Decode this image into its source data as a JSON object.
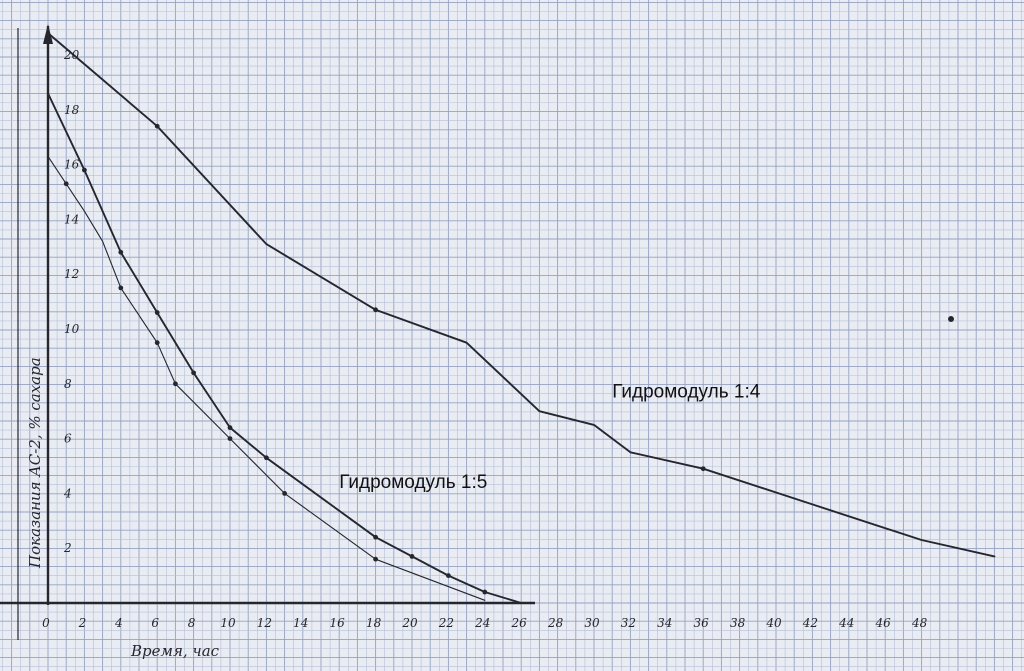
{
  "chart_data": {
    "type": "line",
    "xlabel": "Время, час",
    "ylabel": "Показания АС-2, % сахара",
    "xlim": [
      0,
      52
    ],
    "ylim": [
      0,
      21
    ],
    "grid": true,
    "x_ticks": [
      {
        "value": 0,
        "label": "0"
      },
      {
        "value": 2,
        "label": "2"
      },
      {
        "value": 4,
        "label": "4"
      },
      {
        "value": 6,
        "label": "6"
      },
      {
        "value": 8,
        "label": "8"
      },
      {
        "value": 10,
        "label": "10"
      },
      {
        "value": 12,
        "label": "12"
      },
      {
        "value": 14,
        "label": "14"
      },
      {
        "value": 16,
        "label": "16"
      },
      {
        "value": 18,
        "label": "18"
      },
      {
        "value": 20,
        "label": "20"
      },
      {
        "value": 22,
        "label": "22"
      },
      {
        "value": 24,
        "label": "24"
      },
      {
        "value": 26,
        "label": "26"
      },
      {
        "value": 28,
        "label": "28"
      },
      {
        "value": 30,
        "label": "30"
      },
      {
        "value": 32,
        "label": "32"
      },
      {
        "value": 34,
        "label": "34"
      },
      {
        "value": 36,
        "label": "36"
      },
      {
        "value": 38,
        "label": "38"
      },
      {
        "value": 40,
        "label": "40"
      },
      {
        "value": 42,
        "label": "42"
      },
      {
        "value": 44,
        "label": "44"
      },
      {
        "value": 46,
        "label": "46"
      },
      {
        "value": 48,
        "label": "48"
      }
    ],
    "y_ticks": [
      {
        "value": 2,
        "label": "2"
      },
      {
        "value": 4,
        "label": "4"
      },
      {
        "value": 6,
        "label": "6"
      },
      {
        "value": 8,
        "label": "8"
      },
      {
        "value": 10,
        "label": "10"
      },
      {
        "value": 12,
        "label": "12"
      },
      {
        "value": 14,
        "label": "14"
      },
      {
        "value": 16,
        "label": "16"
      },
      {
        "value": 18,
        "label": "18"
      },
      {
        "value": 20,
        "label": "20"
      }
    ],
    "series": [
      {
        "label_id": "gm14",
        "points": [
          [
            0,
            20.8
          ],
          [
            6,
            17.4
          ],
          [
            12,
            13.1
          ],
          [
            18,
            10.7
          ],
          [
            23,
            9.5
          ],
          [
            27,
            7.0
          ],
          [
            30,
            6.5
          ],
          [
            32,
            5.5
          ],
          [
            36,
            4.9
          ],
          [
            42,
            3.6
          ],
          [
            48,
            2.3
          ],
          [
            52,
            1.7
          ]
        ],
        "markers": [
          [
            6,
            17.4
          ],
          [
            18,
            10.7
          ],
          [
            36,
            4.9
          ]
        ],
        "stroke_width": 1.9
      },
      {
        "label_id": "gm15",
        "points": [
          [
            0,
            18.6
          ],
          [
            2,
            15.8
          ],
          [
            4,
            12.8
          ],
          [
            6,
            10.6
          ],
          [
            8,
            8.4
          ],
          [
            10,
            6.4
          ],
          [
            12,
            5.3
          ],
          [
            18,
            2.4
          ],
          [
            20,
            1.7
          ],
          [
            22,
            1.0
          ],
          [
            24,
            0.4
          ],
          [
            26,
            0
          ]
        ],
        "markers": [
          [
            2,
            15.8
          ],
          [
            4,
            12.8
          ],
          [
            6,
            10.6
          ],
          [
            8,
            8.4
          ],
          [
            10,
            6.4
          ],
          [
            12,
            5.3
          ],
          [
            18,
            2.4
          ],
          [
            20,
            1.7
          ],
          [
            22,
            1.0
          ],
          [
            24,
            0.4
          ]
        ],
        "stroke_width": 1.9
      },
      {
        "points": [
          [
            0,
            16.3
          ],
          [
            2,
            14.3
          ],
          [
            3,
            13.2
          ],
          [
            4,
            11.5
          ],
          [
            6,
            9.5
          ],
          [
            7,
            8.0
          ],
          [
            10,
            6.0
          ],
          [
            13,
            4.0
          ],
          [
            18,
            1.6
          ],
          [
            24,
            0.1
          ]
        ],
        "markers": [
          [
            1,
            15.3
          ],
          [
            4,
            11.5
          ],
          [
            6,
            9.5
          ],
          [
            7,
            8.0
          ],
          [
            10,
            6.0
          ],
          [
            13,
            4.0
          ],
          [
            18,
            1.6
          ]
        ],
        "stroke_width": 1.1
      }
    ],
    "annotations": [
      {
        "id": "gm14",
        "text": "Гидромодуль 1:4",
        "at": [
          31,
          7.5
        ]
      },
      {
        "id": "gm15",
        "text": "Гидромодуль 1:5",
        "at": [
          16,
          4.2
        ]
      }
    ]
  },
  "colors": {
    "paper": "#e9ecf3",
    "grid_minor": "#b6c0d6",
    "grid_major": "#95a2c1",
    "ink": "#26262e"
  }
}
